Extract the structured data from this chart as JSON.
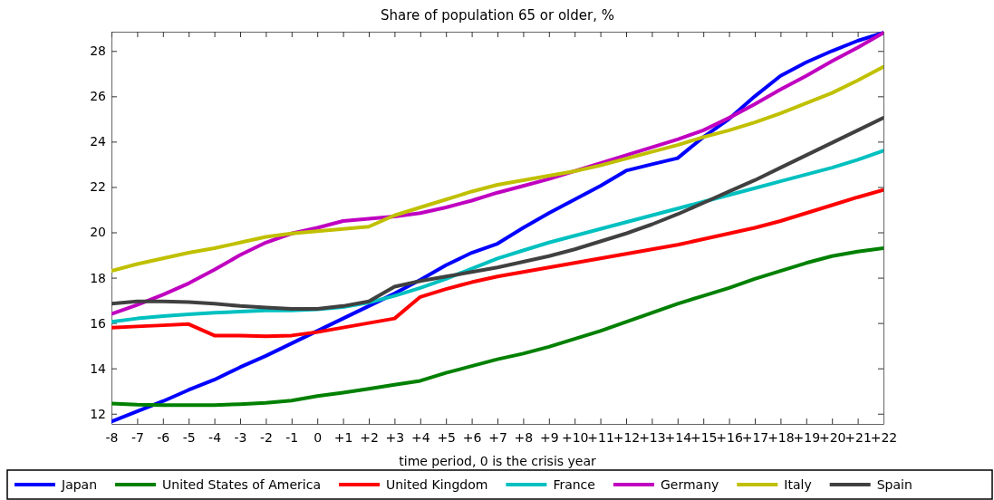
{
  "chart_data": {
    "type": "line",
    "title": "Share of population 65 or older, %",
    "xlabel": "time period, 0 is the crisis year",
    "x": [
      -8,
      -7,
      -6,
      -5,
      -4,
      -3,
      -2,
      -1,
      0,
      1,
      2,
      3,
      4,
      5,
      6,
      7,
      8,
      9,
      10,
      11,
      12,
      13,
      14,
      15,
      16,
      17,
      18,
      19,
      20,
      21,
      22
    ],
    "xlim": [
      -8,
      22
    ],
    "xticks": [
      -8,
      -7,
      -6,
      -5,
      -4,
      -3,
      -2,
      -1,
      0,
      {
        "value": 1,
        "label": "+1"
      },
      {
        "value": 2,
        "label": "+2"
      },
      {
        "value": 3,
        "label": "+3"
      },
      {
        "value": 4,
        "label": "+4"
      },
      {
        "value": 5,
        "label": "+5"
      },
      {
        "value": 6,
        "label": "+6"
      },
      {
        "value": 7,
        "label": "+7"
      },
      {
        "value": 8,
        "label": "+8"
      },
      {
        "value": 9,
        "label": "+9"
      },
      {
        "value": 10,
        "label": "+10"
      },
      {
        "value": 11,
        "label": "+11"
      },
      {
        "value": 12,
        "label": "+12"
      },
      {
        "value": 13,
        "label": "+13"
      },
      {
        "value": 14,
        "label": "+14"
      },
      {
        "value": 15,
        "label": "+15"
      },
      {
        "value": 16,
        "label": "+16"
      },
      {
        "value": 17,
        "label": "+17"
      },
      {
        "value": 18,
        "label": "+18"
      },
      {
        "value": 19,
        "label": "+19"
      },
      {
        "value": 20,
        "label": "+20"
      },
      {
        "value": 21,
        "label": "+21"
      },
      {
        "value": 22,
        "label": "+22"
      }
    ],
    "ylim": [
      11.55,
      28.85
    ],
    "yticks": [
      12,
      14,
      16,
      18,
      20,
      22,
      24,
      26,
      28
    ],
    "grid": false,
    "legend": "bottom",
    "marker": "none",
    "line_style": "solid",
    "series": [
      {
        "name": "Japan",
        "color": "#0000ff",
        "values": [
          11.65,
          12.1,
          12.55,
          13.05,
          13.5,
          14.05,
          14.55,
          15.1,
          15.65,
          16.2,
          16.75,
          17.3,
          17.9,
          18.55,
          19.1,
          19.5,
          20.2,
          20.85,
          21.45,
          22.05,
          22.72,
          23.0,
          23.27,
          24.2,
          25.0,
          26.0,
          26.9,
          27.5,
          28.0,
          28.45,
          28.8
        ]
      },
      {
        "name": "United States of America",
        "color": "#008000",
        "values": [
          12.45,
          12.4,
          12.38,
          12.38,
          12.38,
          12.42,
          12.48,
          12.58,
          12.78,
          12.93,
          13.1,
          13.28,
          13.45,
          13.8,
          14.1,
          14.4,
          14.65,
          14.95,
          15.3,
          15.65,
          16.05,
          16.45,
          16.85,
          17.2,
          17.55,
          17.95,
          18.3,
          18.65,
          18.95,
          19.15,
          19.3
        ]
      },
      {
        "name": "United Kingdom",
        "color": "#ff0000",
        "values": [
          15.8,
          15.85,
          15.9,
          15.95,
          15.45,
          15.45,
          15.42,
          15.45,
          15.6,
          15.8,
          16.0,
          16.2,
          17.15,
          17.5,
          17.8,
          18.05,
          18.25,
          18.45,
          18.65,
          18.85,
          19.05,
          19.25,
          19.45,
          19.7,
          19.95,
          20.2,
          20.5,
          20.85,
          21.2,
          21.55,
          21.87
        ]
      },
      {
        "name": "France",
        "color": "#00c0c0",
        "values": [
          16.05,
          16.2,
          16.3,
          16.38,
          16.45,
          16.5,
          16.55,
          16.55,
          16.6,
          16.7,
          16.9,
          17.2,
          17.55,
          17.95,
          18.4,
          18.85,
          19.2,
          19.55,
          19.85,
          20.15,
          20.45,
          20.75,
          21.05,
          21.35,
          21.65,
          21.95,
          22.25,
          22.55,
          22.85,
          23.2,
          23.6
        ]
      },
      {
        "name": "Germany",
        "color": "#c000c0",
        "values": [
          16.4,
          16.8,
          17.25,
          17.75,
          18.35,
          19.0,
          19.55,
          19.95,
          20.2,
          20.5,
          20.6,
          20.7,
          20.85,
          21.1,
          21.4,
          21.75,
          22.05,
          22.35,
          22.7,
          23.05,
          23.4,
          23.75,
          24.1,
          24.5,
          25.05,
          25.65,
          26.3,
          26.9,
          27.55,
          28.15,
          28.8
        ]
      },
      {
        "name": "Italy",
        "color": "#c0c000",
        "values": [
          18.3,
          18.6,
          18.85,
          19.1,
          19.3,
          19.55,
          19.8,
          19.95,
          20.05,
          20.15,
          20.25,
          20.75,
          21.1,
          21.45,
          21.8,
          22.1,
          22.3,
          22.5,
          22.7,
          22.95,
          23.25,
          23.55,
          23.85,
          24.2,
          24.5,
          24.85,
          25.25,
          25.7,
          26.15,
          26.7,
          27.3
        ]
      },
      {
        "name": "Spain",
        "color": "#404040",
        "values": [
          16.85,
          16.95,
          16.95,
          16.92,
          16.85,
          16.75,
          16.68,
          16.62,
          16.62,
          16.75,
          16.95,
          17.6,
          17.85,
          18.05,
          18.25,
          18.45,
          18.7,
          18.95,
          19.25,
          19.6,
          19.95,
          20.35,
          20.8,
          21.3,
          21.8,
          22.3,
          22.85,
          23.4,
          23.95,
          24.5,
          25.05
        ]
      }
    ]
  }
}
